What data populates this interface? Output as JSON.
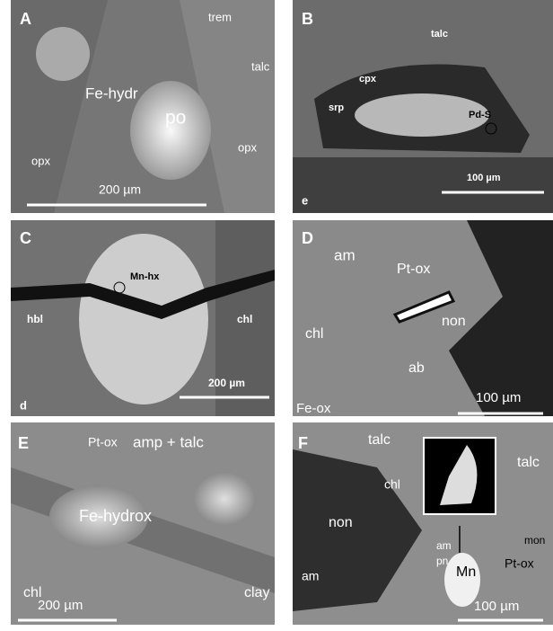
{
  "panels": [
    {
      "letter": "A",
      "labels": [
        "trem",
        "talc",
        "Fe-hydr",
        "po",
        "opx",
        "opx"
      ],
      "scale": "200 µm"
    },
    {
      "letter": "B",
      "labels": [
        "talc",
        "cpx",
        "srp",
        "Pd-S"
      ],
      "scale": "100 µm",
      "corner": "e"
    },
    {
      "letter": "C",
      "labels": [
        "Mn-hx",
        "hbl",
        "chl"
      ],
      "scale": "200 µm",
      "corner": "d"
    },
    {
      "letter": "D",
      "labels": [
        "am",
        "Pt-ox",
        "chl",
        "non",
        "ab",
        "Fe-ox"
      ],
      "scale": "100 µm"
    },
    {
      "letter": "E",
      "labels": [
        "Pt-ox",
        "amp + talc",
        "Fe-hydrox",
        "chl",
        "clay"
      ],
      "scale": "200 µm"
    },
    {
      "letter": "F",
      "labels": [
        "talc",
        "talc",
        "chl",
        "non",
        "am",
        "Mn",
        "mon",
        "Pt-ox",
        "am",
        "pn"
      ],
      "scale": "100 µm"
    }
  ]
}
